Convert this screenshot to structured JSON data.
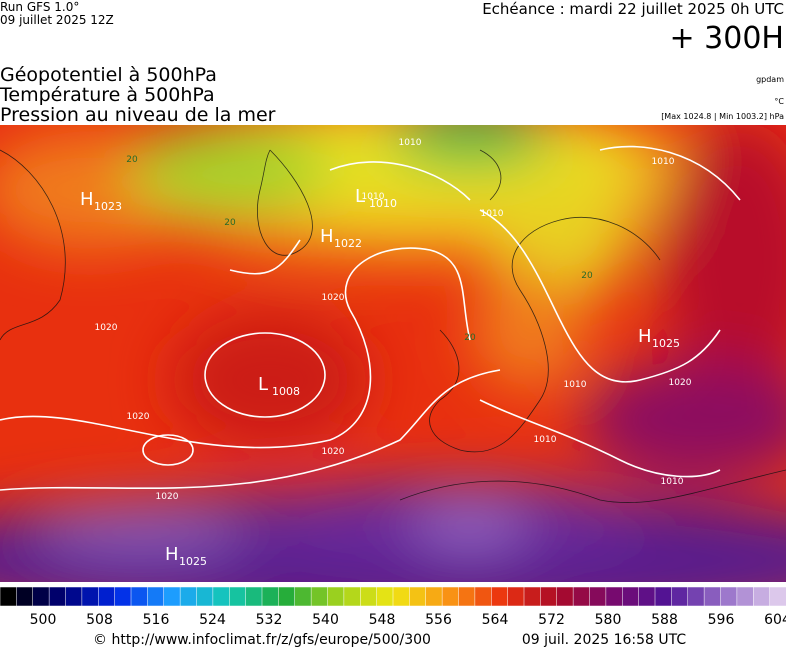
{
  "header": {
    "run": "Run GFS 1.0°",
    "run_date": "09 juillet 2025 12Z",
    "valid": "Echéance : mardi 22 juillet 2025 0h UTC",
    "lead": "+ 300H",
    "fields": [
      "Géopotentiel à 500hPa",
      "Température à 500hPa",
      "Pression au niveau de la mer"
    ],
    "units": [
      "gpdam",
      "°C",
      "[Max 1024.8 | Min 1003.2] hPa"
    ]
  },
  "map": {
    "pressure_centers": [
      {
        "symbol": "H",
        "value": "1023"
      },
      {
        "symbol": "L",
        "value": "1010"
      },
      {
        "symbol": "H",
        "value": "1022"
      },
      {
        "symbol": "L",
        "value": "1008"
      },
      {
        "symbol": "H",
        "value": "1025"
      },
      {
        "symbol": "H",
        "value": "1025"
      }
    ],
    "isobar_labels": [
      "1020",
      "1020",
      "1020",
      "1020",
      "1020",
      "1020",
      "1010",
      "1010",
      "1010",
      "1010",
      "1010",
      "1010",
      "1010"
    ],
    "temperature_labels": [
      "20",
      "20",
      "20",
      "20"
    ]
  },
  "colorbar": {
    "ticks": [
      500,
      508,
      516,
      524,
      532,
      540,
      548,
      556,
      564,
      572,
      580,
      588,
      596,
      604
    ]
  },
  "footer": {
    "source": "© http://www.infoclimat.fr/z/gfs/europe/500/300",
    "generated": "09 juil. 2025 16:58 UTC"
  }
}
